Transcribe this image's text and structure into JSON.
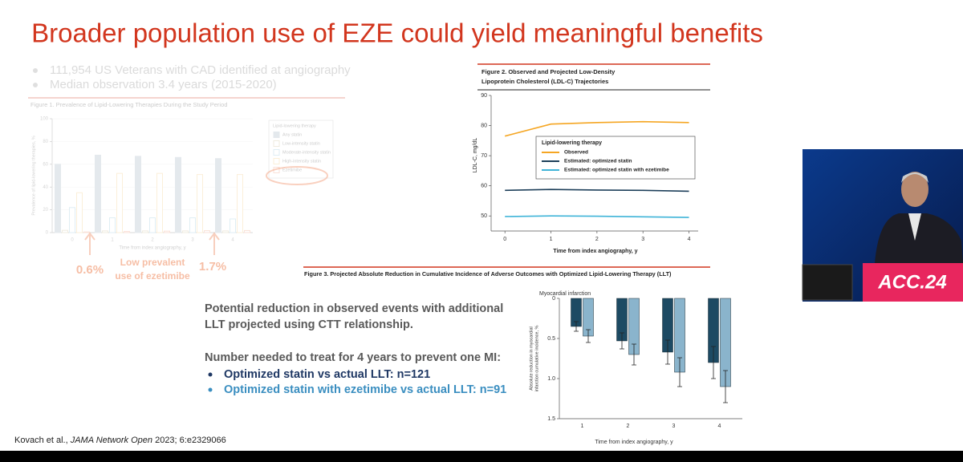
{
  "slide": {
    "title": "Broader population use of EZE could yield meaningful benefits",
    "bullets": [
      "111,954 US Veterans with CAD identified at angiography",
      "Median observation 3.4 years (2015-2020)"
    ],
    "summary": [
      "Potential reduction in observed events with additional",
      "LLT projected using CTT relationship."
    ],
    "nnt_heading": "Number needed to treat for 4 years to prevent one MI:",
    "nnt": [
      "Optimized statin vs actual LLT: n=121",
      "Optimized statin with ezetimibe vs actual LLT: n=91"
    ],
    "citation": {
      "authors": "Kovach et al.,",
      "journal": "JAMA Network Open",
      "details": "2023; 6:e2329066"
    }
  },
  "video": {
    "logo": "ACC.24"
  },
  "chart_data": [
    {
      "type": "bar",
      "title": "Figure 1. Prevalence of Lipid-Lowering Therapies During the Study Period",
      "categories": [
        "0",
        "1",
        "2",
        "3",
        "4"
      ],
      "x_label": "Time from index angiography, y",
      "y_label": "Prevalence of lipid-lowering therapies, %",
      "ylim": [
        0,
        100
      ],
      "yticks": [
        0,
        20,
        40,
        60,
        80,
        100
      ],
      "legend_title": "Lipid-lowering therapy",
      "series": [
        {
          "name": "Any statin",
          "color": "#9fb4c2",
          "values": [
            60,
            68,
            67,
            66,
            65
          ]
        },
        {
          "name": "Low-intensity statin",
          "color": "#c9b98f",
          "values": [
            2,
            1.5,
            1.5,
            1.5,
            1.5
          ]
        },
        {
          "name": "Moderate-intensity statin",
          "color": "#8fc6da",
          "values": [
            22,
            13,
            13,
            13,
            12
          ]
        },
        {
          "name": "High-intensity statin",
          "color": "#f1c77a",
          "values": [
            35,
            52,
            52,
            51,
            51
          ]
        },
        {
          "name": "Ezetimibe",
          "color": "#ef9a7a",
          "values": [
            0.6,
            1.0,
            1.3,
            1.7,
            1.8
          ]
        }
      ],
      "annotations": [
        "0.6%",
        "Low prevalent",
        "use of ezetimibe",
        "1.7%"
      ]
    },
    {
      "type": "line",
      "title": [
        "Figure 2. Observed and Projected Low-Density",
        "Lipoprotein Cholesterol (LDL-C) Trajectories"
      ],
      "x": [
        0,
        1,
        2,
        3,
        4
      ],
      "xlim": [
        -0.3,
        4.2
      ],
      "xticks": [
        0,
        1,
        2,
        3,
        4
      ],
      "ylim": [
        45,
        90
      ],
      "yticks": [
        50,
        60,
        70,
        80,
        90
      ],
      "x_label": "Time from index angiography, y",
      "y_label": "LDL-C, mg/dL",
      "legend_title": "Lipid-lowering therapy",
      "series": [
        {
          "name": "Observed",
          "color": "#f5a623",
          "values": [
            76.5,
            80.5,
            81,
            81.3,
            81
          ]
        },
        {
          "name": "Estimated: optimized statin",
          "color": "#1d3f5a",
          "values": [
            58.5,
            58.8,
            58.6,
            58.5,
            58.2
          ]
        },
        {
          "name": "Estimated: optimized statin with ezetimibe",
          "color": "#3fb4d8",
          "values": [
            49.8,
            50,
            49.9,
            49.7,
            49.5
          ]
        }
      ]
    },
    {
      "type": "bar",
      "title": "Figure 3. Projected Absolute Reduction in Cumulative Incidence of Adverse Outcomes with Optimized Lipid-Lowering Therapy (LLT)",
      "panel": "Myocardial infarction",
      "categories": [
        "1",
        "2",
        "3",
        "4"
      ],
      "x_label": "Time from index angiography, y",
      "y_label": [
        "Absolute reduction in myocardial",
        "infarction cumulative incidence, %"
      ],
      "ylim": [
        1.5,
        0
      ],
      "yticks": [
        0,
        0.5,
        {
          "value": 1,
          "label": "1.0"
        },
        1.5
      ],
      "series": [
        {
          "color": "#1d4a63",
          "values": [
            0.35,
            0.53,
            0.67,
            0.8
          ],
          "errors": [
            0.06,
            0.1,
            0.15,
            0.2
          ]
        },
        {
          "color": "#8ab4cc",
          "values": [
            0.47,
            0.7,
            0.92,
            1.1
          ],
          "errors": [
            0.08,
            0.13,
            0.18,
            0.2
          ]
        }
      ]
    }
  ]
}
